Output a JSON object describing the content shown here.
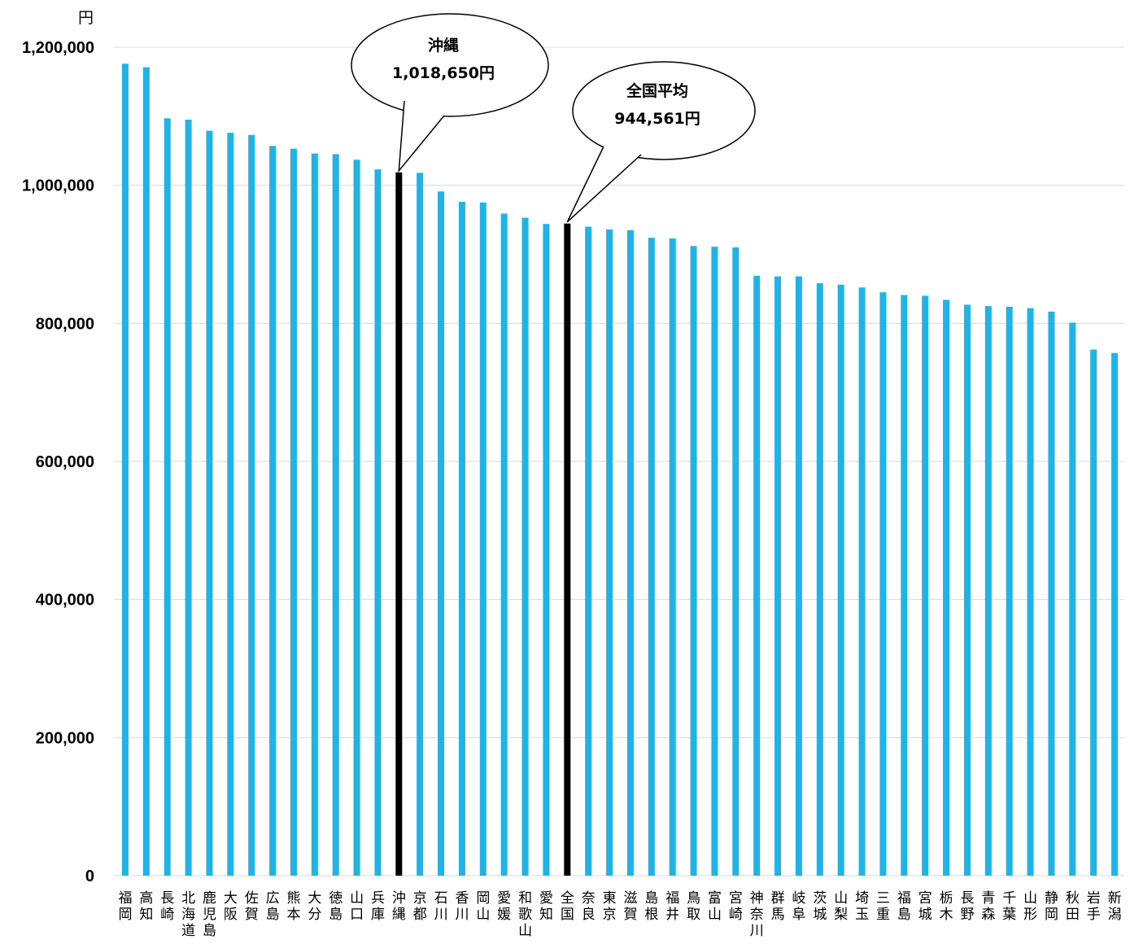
{
  "chart_data": {
    "type": "bar",
    "y_unit": "円",
    "ylim": [
      0,
      1200000
    ],
    "yticks": [
      0,
      200000,
      400000,
      600000,
      800000,
      1000000,
      1200000
    ],
    "ytick_labels": [
      "0",
      "200,000",
      "400,000",
      "600,000",
      "800,000",
      "1,000,000",
      "1,200,000"
    ],
    "grid": true,
    "legend": "none",
    "colors": {
      "bar": "#1FB3E6",
      "highlight": "#000000",
      "grid": "#D9D9D9"
    },
    "categories": [
      "福岡",
      "高知",
      "長崎",
      "北海道",
      "鹿児島",
      "大阪",
      "佐賀",
      "広島",
      "熊本",
      "大分",
      "徳島",
      "山口",
      "兵庫",
      "沖縄",
      "京都",
      "石川",
      "香川",
      "岡山",
      "愛媛",
      "和歌山",
      "愛知",
      "全国",
      "奈良",
      "東京",
      "滋賀",
      "島根",
      "福井",
      "鳥取",
      "富山",
      "宮崎",
      "神奈川",
      "群馬",
      "岐阜",
      "茨城",
      "山梨",
      "埼玉",
      "三重",
      "福島",
      "宮城",
      "栃木",
      "長野",
      "青森",
      "千葉",
      "山形",
      "静岡",
      "秋田",
      "岩手",
      "新潟"
    ],
    "values": [
      1176000,
      1171000,
      1097000,
      1095000,
      1079000,
      1076000,
      1073000,
      1057000,
      1053000,
      1046000,
      1045000,
      1037000,
      1023000,
      1018650,
      1018000,
      991000,
      976000,
      975000,
      959000,
      953000,
      944000,
      944561,
      940000,
      936000,
      935000,
      924000,
      923000,
      912000,
      911000,
      910000,
      869000,
      868000,
      868000,
      858000,
      856000,
      852000,
      845000,
      841000,
      840000,
      834000,
      827000,
      825000,
      824000,
      822000,
      817000,
      801000,
      762000,
      757000
    ],
    "highlight_categories": [
      "沖縄",
      "全国"
    ],
    "annotations": [
      {
        "category": "沖縄",
        "lines": [
          "沖縄",
          "1,018,650円"
        ]
      },
      {
        "category": "全国",
        "lines": [
          "全国平均",
          "944,561円"
        ]
      }
    ]
  }
}
